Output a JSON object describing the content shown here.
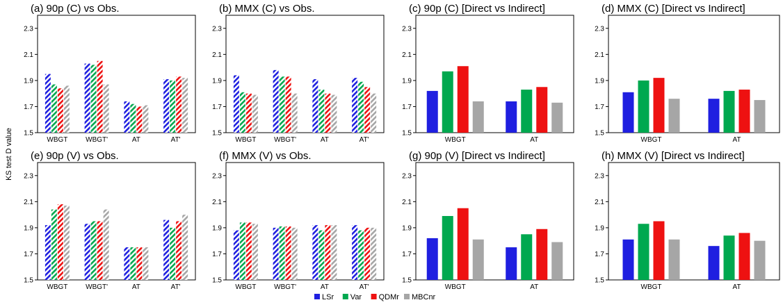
{
  "ylabel": "KS test D value",
  "legend": [
    "LSr",
    "Var",
    "QDMr",
    "MBCnr"
  ],
  "colors": {
    "LSr": "#1f1fe0",
    "Var": "#00a84f",
    "QDMr": "#ee1111",
    "MBCnr": "#a6a6a6"
  },
  "chart_data": [
    {
      "type": "bar",
      "title": "(a) 90p (C) vs Obs.",
      "hatched": true,
      "ylim": [
        1.5,
        2.4
      ],
      "yticks": [
        1.5,
        1.7,
        1.9,
        2.1,
        2.3
      ],
      "categories": [
        "WBGT",
        "WBGT'",
        "AT",
        "AT'"
      ],
      "series": [
        {
          "name": "LSr",
          "values": [
            1.95,
            2.03,
            1.74,
            1.91
          ]
        },
        {
          "name": "Var",
          "values": [
            1.87,
            2.02,
            1.72,
            1.9
          ]
        },
        {
          "name": "QDMr",
          "values": [
            1.84,
            2.05,
            1.7,
            1.93
          ]
        },
        {
          "name": "MBCnr",
          "values": [
            1.86,
            1.87,
            1.71,
            1.92
          ]
        }
      ]
    },
    {
      "type": "bar",
      "title": "(b) MMX (C) vs Obs.",
      "hatched": true,
      "ylim": [
        1.5,
        2.4
      ],
      "yticks": [
        1.5,
        1.7,
        1.9,
        2.1,
        2.3
      ],
      "categories": [
        "WBGT",
        "WBGT'",
        "AT",
        "AT'"
      ],
      "series": [
        {
          "name": "LSr",
          "values": [
            1.94,
            1.98,
            1.91,
            1.92
          ]
        },
        {
          "name": "Var",
          "values": [
            1.81,
            1.93,
            1.83,
            1.89
          ]
        },
        {
          "name": "QDMr",
          "values": [
            1.8,
            1.93,
            1.8,
            1.85
          ]
        },
        {
          "name": "MBCnr",
          "values": [
            1.79,
            1.8,
            1.79,
            1.8
          ]
        }
      ]
    },
    {
      "type": "bar",
      "title": "(c) 90p (C) [Direct vs Indirect]",
      "hatched": false,
      "ylim": [
        1.5,
        2.4
      ],
      "yticks": [
        1.5,
        1.7,
        1.9,
        2.1,
        2.3
      ],
      "categories": [
        "WBGT",
        "AT"
      ],
      "series": [
        {
          "name": "LSr",
          "values": [
            1.82,
            1.74
          ]
        },
        {
          "name": "Var",
          "values": [
            1.97,
            1.83
          ]
        },
        {
          "name": "QDMr",
          "values": [
            2.01,
            1.85
          ]
        },
        {
          "name": "MBCnr",
          "values": [
            1.74,
            1.73
          ]
        }
      ]
    },
    {
      "type": "bar",
      "title": "(d) MMX (C) [Direct vs Indirect]",
      "hatched": false,
      "ylim": [
        1.5,
        2.4
      ],
      "yticks": [
        1.5,
        1.7,
        1.9,
        2.1,
        2.3
      ],
      "categories": [
        "WBGT",
        "AT"
      ],
      "series": [
        {
          "name": "LSr",
          "values": [
            1.81,
            1.76
          ]
        },
        {
          "name": "Var",
          "values": [
            1.9,
            1.82
          ]
        },
        {
          "name": "QDMr",
          "values": [
            1.92,
            1.83
          ]
        },
        {
          "name": "MBCnr",
          "values": [
            1.76,
            1.75
          ]
        }
      ]
    },
    {
      "type": "bar",
      "title": "(e) 90p (V) vs Obs.",
      "hatched": true,
      "ylim": [
        1.5,
        2.4
      ],
      "yticks": [
        1.5,
        1.7,
        1.9,
        2.1,
        2.3
      ],
      "categories": [
        "WBGT",
        "WBGT'",
        "AT",
        "AT'"
      ],
      "series": [
        {
          "name": "LSr",
          "values": [
            1.92,
            1.93,
            1.75,
            1.96
          ]
        },
        {
          "name": "Var",
          "values": [
            2.04,
            1.95,
            1.75,
            1.9
          ]
        },
        {
          "name": "QDMr",
          "values": [
            2.08,
            1.95,
            1.75,
            1.95
          ]
        },
        {
          "name": "MBCnr",
          "values": [
            2.07,
            2.04,
            1.75,
            2.0
          ]
        }
      ]
    },
    {
      "type": "bar",
      "title": "(f) MMX (V) vs Obs.",
      "hatched": true,
      "ylim": [
        1.5,
        2.4
      ],
      "yticks": [
        1.5,
        1.7,
        1.9,
        2.1,
        2.3
      ],
      "categories": [
        "WBGT",
        "WBGT'",
        "AT",
        "AT'"
      ],
      "series": [
        {
          "name": "LSr",
          "values": [
            1.88,
            1.9,
            1.92,
            1.92
          ]
        },
        {
          "name": "Var",
          "values": [
            1.94,
            1.91,
            1.88,
            1.88
          ]
        },
        {
          "name": "QDMr",
          "values": [
            1.94,
            1.91,
            1.92,
            1.9
          ]
        },
        {
          "name": "MBCnr",
          "values": [
            1.93,
            1.9,
            1.92,
            1.9
          ]
        }
      ]
    },
    {
      "type": "bar",
      "title": "(g) 90p (V) [Direct vs Indirect]",
      "hatched": false,
      "ylim": [
        1.5,
        2.4
      ],
      "yticks": [
        1.5,
        1.7,
        1.9,
        2.1,
        2.3
      ],
      "categories": [
        "WBGT",
        "AT"
      ],
      "series": [
        {
          "name": "LSr",
          "values": [
            1.82,
            1.75
          ]
        },
        {
          "name": "Var",
          "values": [
            1.99,
            1.85
          ]
        },
        {
          "name": "QDMr",
          "values": [
            2.05,
            1.89
          ]
        },
        {
          "name": "MBCnr",
          "values": [
            1.81,
            1.79
          ]
        }
      ]
    },
    {
      "type": "bar",
      "title": "(h) MMX (V) [Direct vs Indirect]",
      "hatched": false,
      "ylim": [
        1.5,
        2.4
      ],
      "yticks": [
        1.5,
        1.7,
        1.9,
        2.1,
        2.3
      ],
      "categories": [
        "WBGT",
        "AT"
      ],
      "series": [
        {
          "name": "LSr",
          "values": [
            1.81,
            1.76
          ]
        },
        {
          "name": "Var",
          "values": [
            1.93,
            1.84
          ]
        },
        {
          "name": "QDMr",
          "values": [
            1.95,
            1.86
          ]
        },
        {
          "name": "MBCnr",
          "values": [
            1.81,
            1.8
          ]
        }
      ]
    }
  ]
}
